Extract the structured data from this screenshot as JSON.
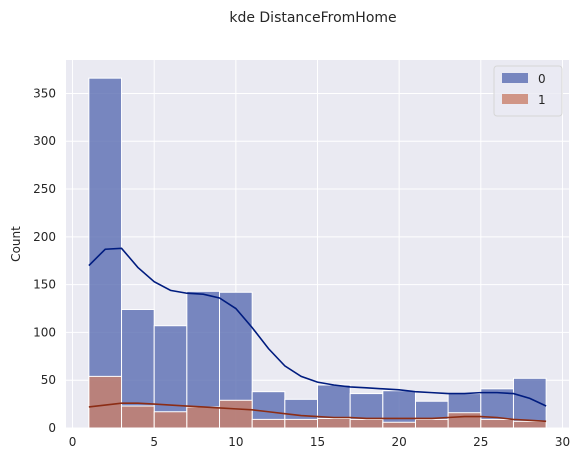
{
  "chart_data": {
    "type": "bar",
    "title": "kde DistanceFromHome",
    "xlabel": "",
    "ylabel": "Count",
    "xlim": [
      -0.4,
      30.4
    ],
    "ylim": [
      0,
      385
    ],
    "x_ticks": [
      0,
      5,
      10,
      15,
      20,
      25,
      30
    ],
    "y_ticks": [
      0,
      50,
      100,
      150,
      200,
      250,
      300,
      350
    ],
    "grid": true,
    "legend_position": "top-right",
    "bin_edges": [
      1,
      3,
      5,
      7,
      9,
      11,
      13,
      15,
      17,
      19,
      21,
      23,
      25,
      27,
      29
    ],
    "series": [
      {
        "name": "0",
        "color": "#5a6db1",
        "line_color": "#001c7f",
        "values": [
          366,
          124,
          107,
          143,
          142,
          38,
          30,
          45,
          36,
          39,
          28,
          36,
          41,
          52
        ],
        "kde": [
          [
            1,
            170
          ],
          [
            2,
            187
          ],
          [
            3,
            188
          ],
          [
            4,
            168
          ],
          [
            5,
            153
          ],
          [
            6,
            144
          ],
          [
            7,
            141
          ],
          [
            8,
            140
          ],
          [
            9,
            136
          ],
          [
            10,
            125
          ],
          [
            11,
            105
          ],
          [
            12,
            83
          ],
          [
            13,
            65
          ],
          [
            14,
            54
          ],
          [
            15,
            48
          ],
          [
            16,
            45
          ],
          [
            17,
            43
          ],
          [
            18,
            42
          ],
          [
            19,
            41
          ],
          [
            20,
            40
          ],
          [
            21,
            38
          ],
          [
            22,
            37
          ],
          [
            23,
            36
          ],
          [
            24,
            36
          ],
          [
            25,
            37
          ],
          [
            26,
            37
          ],
          [
            27,
            36
          ],
          [
            28,
            31
          ],
          [
            29,
            23
          ]
        ]
      },
      {
        "name": "1",
        "color": "#c97f6a",
        "line_color": "#8c2d15",
        "values": [
          54,
          23,
          17,
          22,
          29,
          9,
          9,
          10,
          9,
          6,
          9,
          16,
          9,
          7
        ],
        "kde": [
          [
            1,
            22
          ],
          [
            2,
            24
          ],
          [
            3,
            26
          ],
          [
            4,
            26
          ],
          [
            5,
            25
          ],
          [
            6,
            24
          ],
          [
            7,
            23
          ],
          [
            8,
            22
          ],
          [
            9,
            21
          ],
          [
            10,
            20
          ],
          [
            11,
            19
          ],
          [
            12,
            17
          ],
          [
            13,
            15
          ],
          [
            14,
            13
          ],
          [
            15,
            12
          ],
          [
            16,
            11
          ],
          [
            17,
            11
          ],
          [
            18,
            10
          ],
          [
            19,
            10
          ],
          [
            20,
            10
          ],
          [
            21,
            10
          ],
          [
            22,
            10
          ],
          [
            23,
            11
          ],
          [
            24,
            12
          ],
          [
            25,
            12
          ],
          [
            26,
            11
          ],
          [
            27,
            9
          ],
          [
            28,
            8
          ],
          [
            29,
            7
          ]
        ]
      }
    ]
  }
}
